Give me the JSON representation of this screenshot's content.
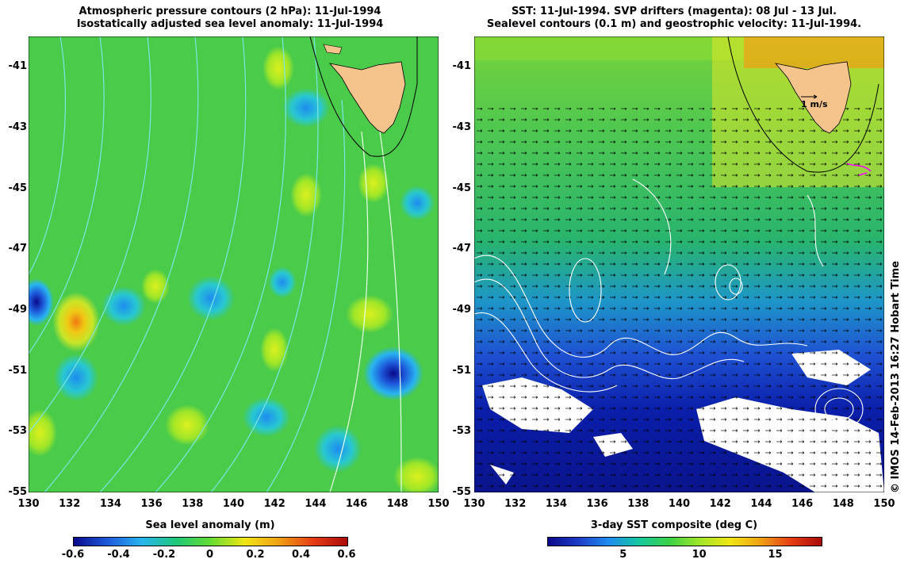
{
  "left": {
    "title_line1": "Atmospheric pressure contours (2 hPa): 11-Jul-1994",
    "title_line2": "Isostatically adjusted sea level anomaly: 11-Jul-1994",
    "colorbar_label": "Sea level anomaly (m)",
    "colorbar_ticks": [
      "-0.6",
      "-0.4",
      "-0.2",
      "0",
      "0.2",
      "0.4",
      "0.6"
    ],
    "colorbar_colors": [
      "#0a0a8c",
      "#1e5adc",
      "#28b4f0",
      "#1ec878",
      "#64dc32",
      "#f0e614",
      "#f0a014",
      "#e63c14",
      "#aa0a0a"
    ]
  },
  "right": {
    "title_line1": "SST: 11-Jul-1994. SVP drifters (magenta): 08 Jul - 13 Jul.",
    "title_line2": "Sealevel contours (0.1 m) and geostrophic velocity: 11-Jul-1994.",
    "colorbar_label": "3-day SST composite (deg C)",
    "colorbar_ticks": [
      "5",
      "10",
      "15"
    ],
    "colorbar_colors": [
      "#0a0a8c",
      "#1e3cc8",
      "#1e8cf0",
      "#14c8a0",
      "#3cd246",
      "#a0e628",
      "#f0e614",
      "#f0a014",
      "#e63c14",
      "#aa0a0a"
    ],
    "velocity_scale_label": "1 m/s"
  },
  "axes": {
    "lat_ticks": [
      "-41",
      "-43",
      "-45",
      "-47",
      "-49",
      "-51",
      "-53",
      "-55"
    ],
    "lon_ticks": [
      "130",
      "132",
      "134",
      "136",
      "138",
      "140",
      "142",
      "144",
      "146",
      "148",
      "150"
    ]
  },
  "credit": "© IMOS 14-Feb-2013 16:27 Hobart Time"
}
